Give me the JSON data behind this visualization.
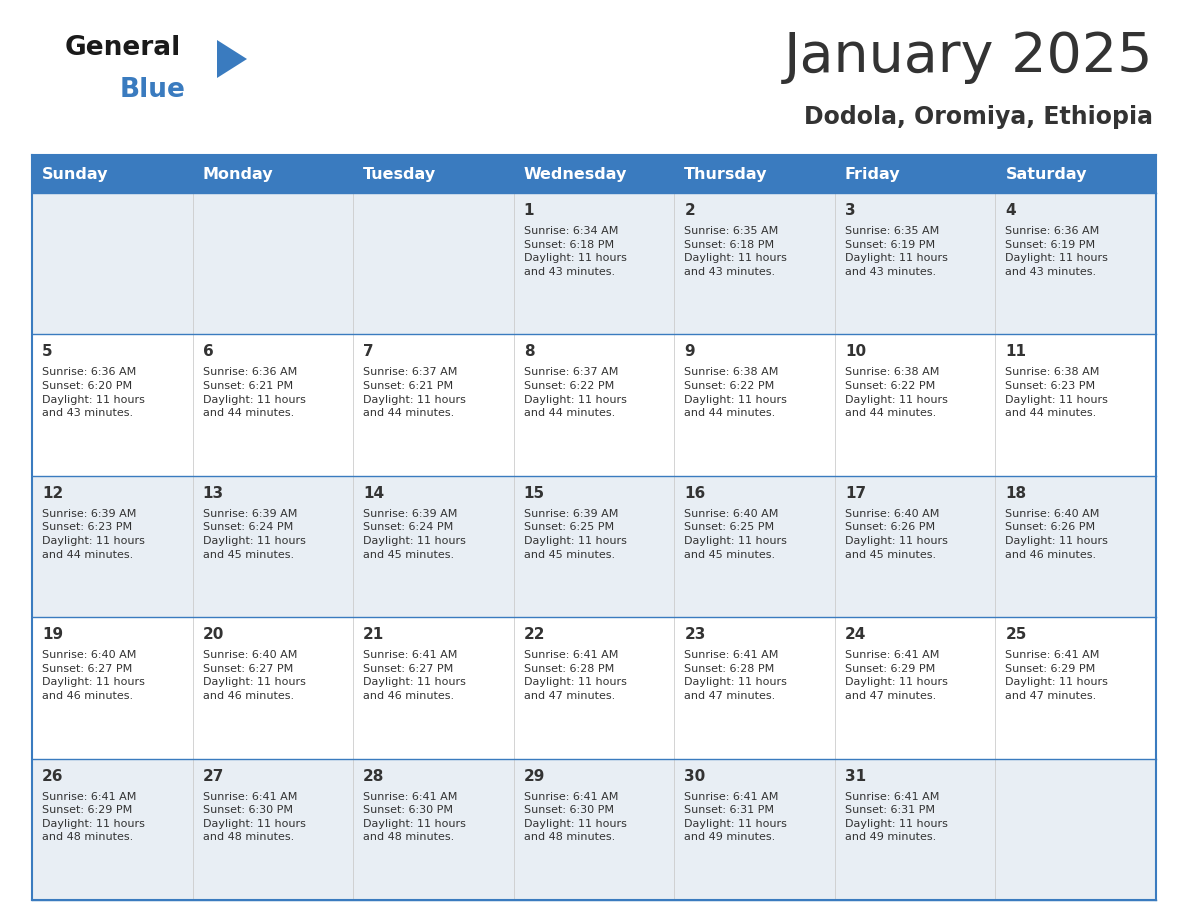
{
  "title": "January 2025",
  "subtitle": "Dodola, Oromiya, Ethiopia",
  "header_bg_color": "#3a7bbf",
  "header_text_color": "#ffffff",
  "cell_bg_color_odd": "#e8eef4",
  "cell_bg_color_even": "#ffffff",
  "border_color": "#3a7bbf",
  "text_color": "#333333",
  "days_of_week": [
    "Sunday",
    "Monday",
    "Tuesday",
    "Wednesday",
    "Thursday",
    "Friday",
    "Saturday"
  ],
  "calendar_data": [
    [
      {
        "day": "",
        "info": ""
      },
      {
        "day": "",
        "info": ""
      },
      {
        "day": "",
        "info": ""
      },
      {
        "day": "1",
        "info": "Sunrise: 6:34 AM\nSunset: 6:18 PM\nDaylight: 11 hours\nand 43 minutes."
      },
      {
        "day": "2",
        "info": "Sunrise: 6:35 AM\nSunset: 6:18 PM\nDaylight: 11 hours\nand 43 minutes."
      },
      {
        "day": "3",
        "info": "Sunrise: 6:35 AM\nSunset: 6:19 PM\nDaylight: 11 hours\nand 43 minutes."
      },
      {
        "day": "4",
        "info": "Sunrise: 6:36 AM\nSunset: 6:19 PM\nDaylight: 11 hours\nand 43 minutes."
      }
    ],
    [
      {
        "day": "5",
        "info": "Sunrise: 6:36 AM\nSunset: 6:20 PM\nDaylight: 11 hours\nand 43 minutes."
      },
      {
        "day": "6",
        "info": "Sunrise: 6:36 AM\nSunset: 6:21 PM\nDaylight: 11 hours\nand 44 minutes."
      },
      {
        "day": "7",
        "info": "Sunrise: 6:37 AM\nSunset: 6:21 PM\nDaylight: 11 hours\nand 44 minutes."
      },
      {
        "day": "8",
        "info": "Sunrise: 6:37 AM\nSunset: 6:22 PM\nDaylight: 11 hours\nand 44 minutes."
      },
      {
        "day": "9",
        "info": "Sunrise: 6:38 AM\nSunset: 6:22 PM\nDaylight: 11 hours\nand 44 minutes."
      },
      {
        "day": "10",
        "info": "Sunrise: 6:38 AM\nSunset: 6:22 PM\nDaylight: 11 hours\nand 44 minutes."
      },
      {
        "day": "11",
        "info": "Sunrise: 6:38 AM\nSunset: 6:23 PM\nDaylight: 11 hours\nand 44 minutes."
      }
    ],
    [
      {
        "day": "12",
        "info": "Sunrise: 6:39 AM\nSunset: 6:23 PM\nDaylight: 11 hours\nand 44 minutes."
      },
      {
        "day": "13",
        "info": "Sunrise: 6:39 AM\nSunset: 6:24 PM\nDaylight: 11 hours\nand 45 minutes."
      },
      {
        "day": "14",
        "info": "Sunrise: 6:39 AM\nSunset: 6:24 PM\nDaylight: 11 hours\nand 45 minutes."
      },
      {
        "day": "15",
        "info": "Sunrise: 6:39 AM\nSunset: 6:25 PM\nDaylight: 11 hours\nand 45 minutes."
      },
      {
        "day": "16",
        "info": "Sunrise: 6:40 AM\nSunset: 6:25 PM\nDaylight: 11 hours\nand 45 minutes."
      },
      {
        "day": "17",
        "info": "Sunrise: 6:40 AM\nSunset: 6:26 PM\nDaylight: 11 hours\nand 45 minutes."
      },
      {
        "day": "18",
        "info": "Sunrise: 6:40 AM\nSunset: 6:26 PM\nDaylight: 11 hours\nand 46 minutes."
      }
    ],
    [
      {
        "day": "19",
        "info": "Sunrise: 6:40 AM\nSunset: 6:27 PM\nDaylight: 11 hours\nand 46 minutes."
      },
      {
        "day": "20",
        "info": "Sunrise: 6:40 AM\nSunset: 6:27 PM\nDaylight: 11 hours\nand 46 minutes."
      },
      {
        "day": "21",
        "info": "Sunrise: 6:41 AM\nSunset: 6:27 PM\nDaylight: 11 hours\nand 46 minutes."
      },
      {
        "day": "22",
        "info": "Sunrise: 6:41 AM\nSunset: 6:28 PM\nDaylight: 11 hours\nand 47 minutes."
      },
      {
        "day": "23",
        "info": "Sunrise: 6:41 AM\nSunset: 6:28 PM\nDaylight: 11 hours\nand 47 minutes."
      },
      {
        "day": "24",
        "info": "Sunrise: 6:41 AM\nSunset: 6:29 PM\nDaylight: 11 hours\nand 47 minutes."
      },
      {
        "day": "25",
        "info": "Sunrise: 6:41 AM\nSunset: 6:29 PM\nDaylight: 11 hours\nand 47 minutes."
      }
    ],
    [
      {
        "day": "26",
        "info": "Sunrise: 6:41 AM\nSunset: 6:29 PM\nDaylight: 11 hours\nand 48 minutes."
      },
      {
        "day": "27",
        "info": "Sunrise: 6:41 AM\nSunset: 6:30 PM\nDaylight: 11 hours\nand 48 minutes."
      },
      {
        "day": "28",
        "info": "Sunrise: 6:41 AM\nSunset: 6:30 PM\nDaylight: 11 hours\nand 48 minutes."
      },
      {
        "day": "29",
        "info": "Sunrise: 6:41 AM\nSunset: 6:30 PM\nDaylight: 11 hours\nand 48 minutes."
      },
      {
        "day": "30",
        "info": "Sunrise: 6:41 AM\nSunset: 6:31 PM\nDaylight: 11 hours\nand 49 minutes."
      },
      {
        "day": "31",
        "info": "Sunrise: 6:41 AM\nSunset: 6:31 PM\nDaylight: 11 hours\nand 49 minutes."
      },
      {
        "day": "",
        "info": ""
      }
    ]
  ],
  "logo_general_color": "#1a1a1a",
  "logo_blue_color": "#3a7bbf",
  "logo_triangle_color": "#3a7bbf",
  "fig_width": 11.88,
  "fig_height": 9.18,
  "dpi": 100
}
